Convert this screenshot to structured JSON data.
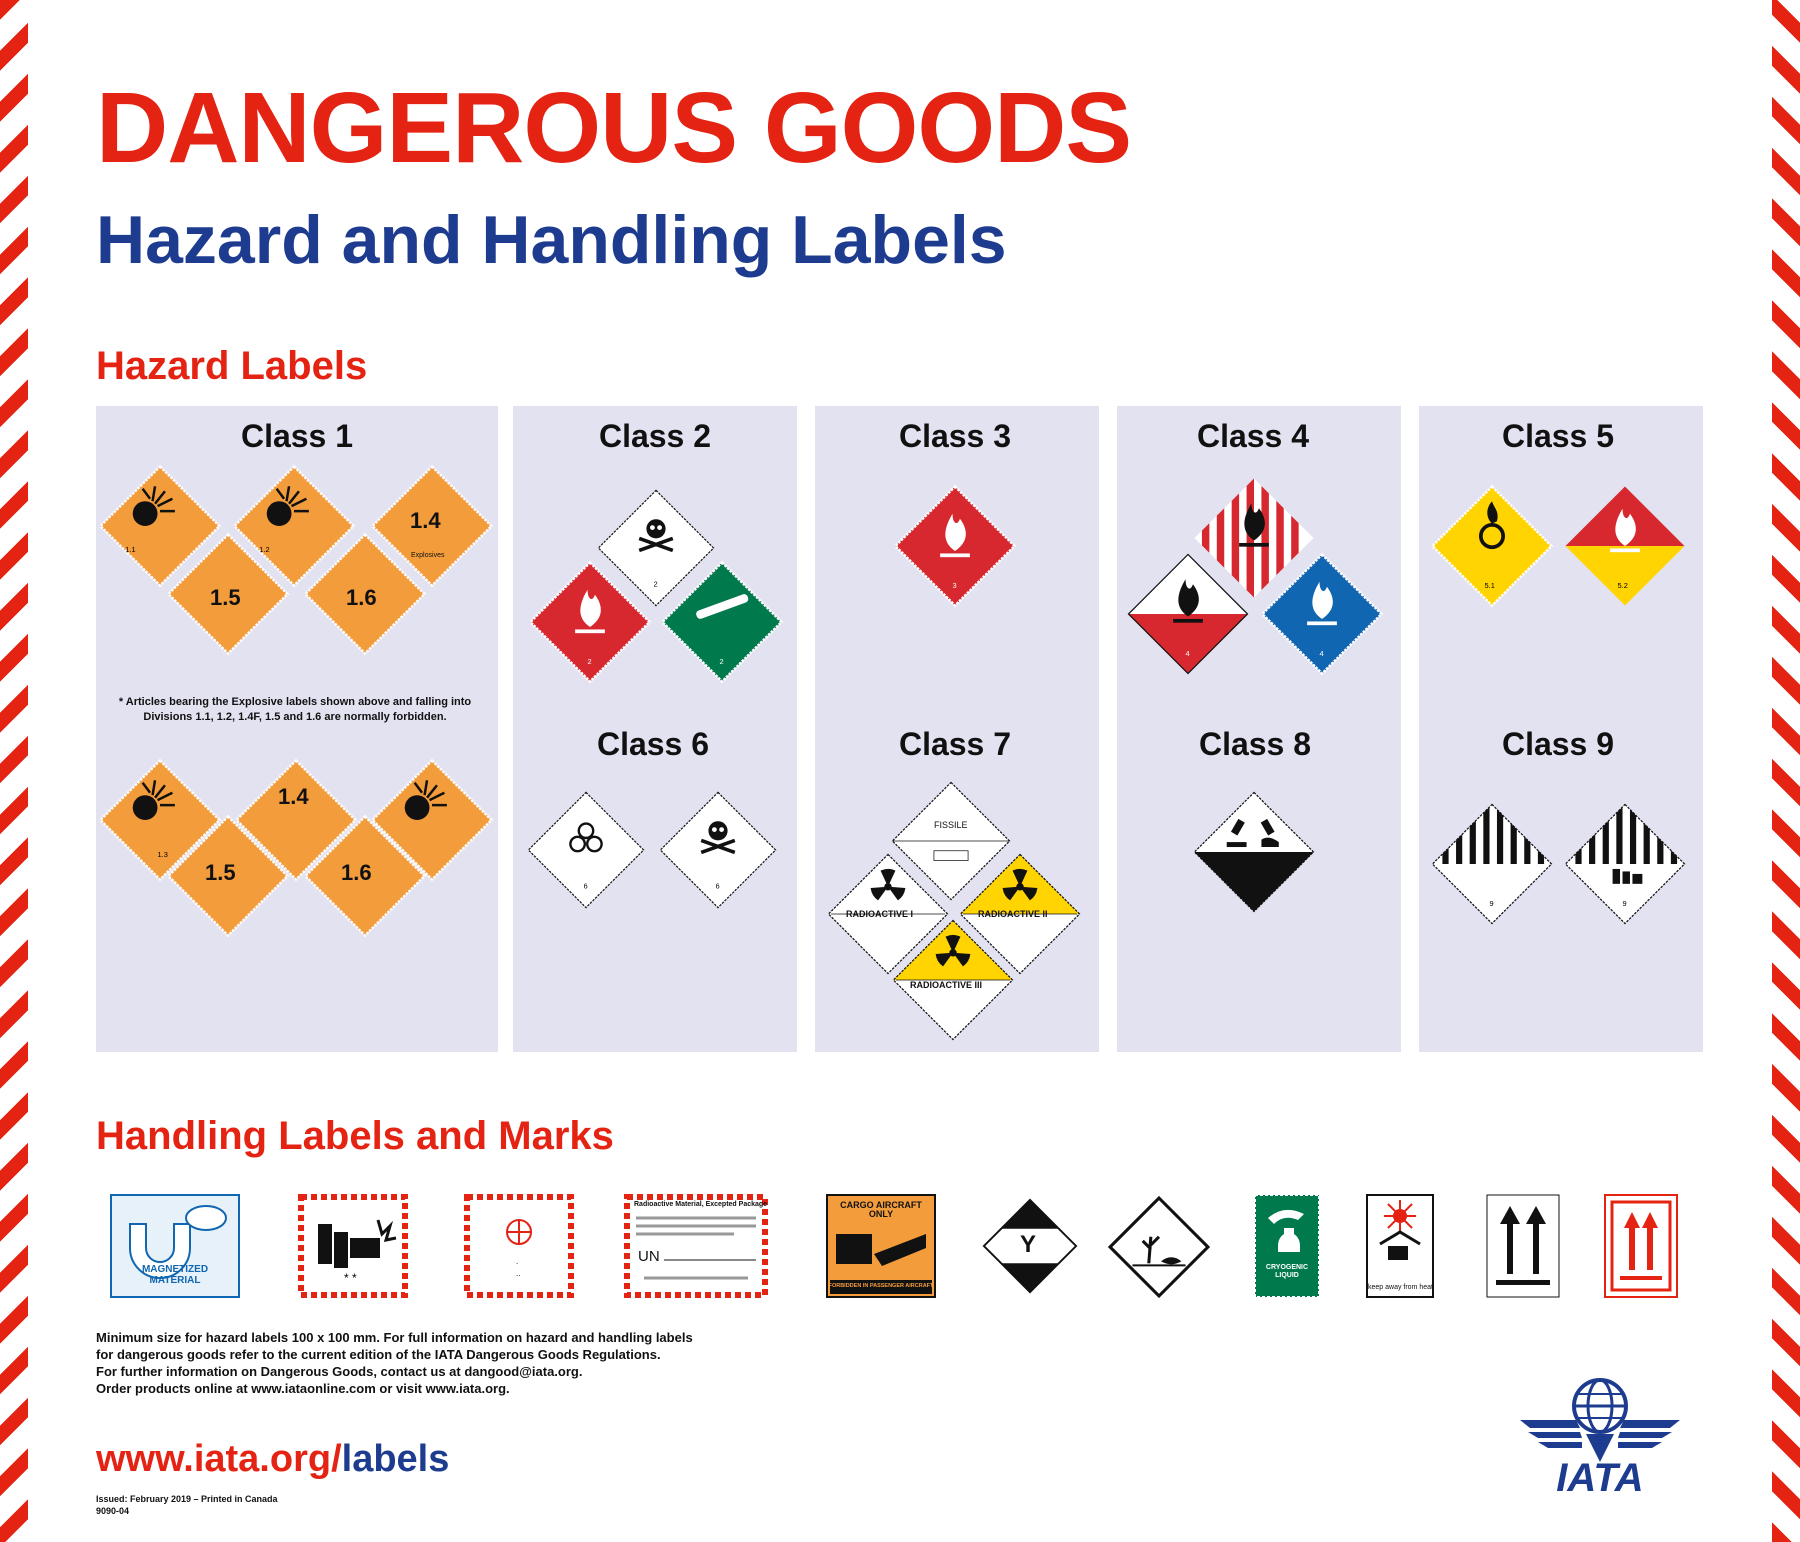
{
  "header": {
    "title": "DANGEROUS GOODS",
    "subtitle": "Hazard and Handling Labels"
  },
  "hazard_section": {
    "heading": "Hazard Labels",
    "classes": {
      "c1": "Class 1",
      "c2": "Class 2",
      "c3": "Class 3",
      "c4": "Class 4",
      "c5": "Class 5",
      "c6": "Class 6",
      "c7": "Class 7",
      "c8": "Class 8",
      "c9": "Class 9"
    },
    "class1_note": "* Articles bearing the Explosive labels shown above and falling into Divisions 1.1, 1.2, 1.4F, 1.5 and 1.6 are normally forbidden.",
    "explosive_divisions": [
      "1.4",
      "1.5",
      "1.6"
    ],
    "explosives_word": "Explosives",
    "radioactive": {
      "fissile": "FISSILE",
      "i": "RADIOACTIVE I",
      "ii": "RADIOACTIVE II",
      "iii": "RADIOACTIVE III"
    }
  },
  "handling_section": {
    "heading": "Handling Labels and Marks",
    "magnetized": "MAGNETIZED MATERIAL",
    "radioactive_excepted": "Radioactive Material, Excepted Package",
    "un": "UN",
    "cargo_aircraft": "CARGO AIRCRAFT ONLY",
    "cargo_forbidden": "FORBIDDEN IN PASSENGER AIRCRAFT",
    "limited_qty": "Y",
    "cryogenic": "CRYOGENIC LIQUID",
    "keep_away": "keep away from heat"
  },
  "footer": {
    "lines": [
      "Minimum size for hazard labels 100 x 100 mm. For full information on hazard and handling labels",
      "for dangerous goods refer to the current edition of the IATA Dangerous Goods Regulations.",
      "For further information on Dangerous Goods, contact us at dangood@iata.org.",
      "Order products online at www.iataonline.com or visit www.iata.org."
    ],
    "url_prefix": "www.iata.org/",
    "url_suffix": "labels",
    "issued": "Issued:  February 2019 – Printed in Canada",
    "code": "9090-04",
    "logo_text": "IATA"
  },
  "colors": {
    "red": "#e42313",
    "navy": "#1d3c8f",
    "panel": "#e3e2f1",
    "explosive_orange": "#f39c3c",
    "flammable_red": "#d7282f",
    "gas_green": "#007a4d",
    "water_blue": "#1066b0",
    "oxidizer_yellow": "#ffd400",
    "radioactive_yellow": "#ffd400"
  }
}
